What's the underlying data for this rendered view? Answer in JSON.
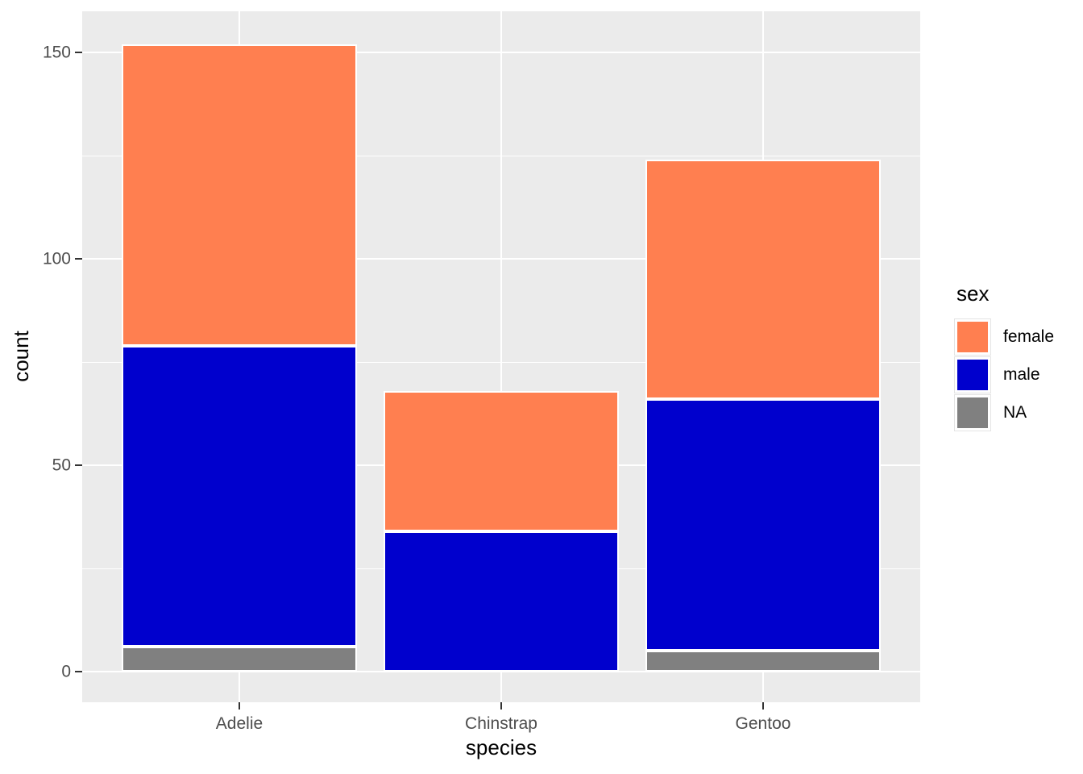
{
  "chart_data": {
    "type": "bar",
    "stacked": true,
    "title": "",
    "xlabel": "species",
    "ylabel": "count",
    "categories": [
      "Adelie",
      "Chinstrap",
      "Gentoo"
    ],
    "series": [
      {
        "name": "female",
        "color": "#FF7F50",
        "values": [
          73,
          34,
          58
        ]
      },
      {
        "name": "male",
        "color": "#0000CD",
        "values": [
          73,
          34,
          61
        ]
      },
      {
        "name": "NA",
        "color": "#808080",
        "values": [
          6,
          0,
          5
        ]
      }
    ],
    "stack_order_bottom_to_top": [
      "NA",
      "male",
      "female"
    ],
    "totals": [
      152,
      68,
      124
    ],
    "ylim": [
      0,
      160
    ],
    "yticks_major": [
      0,
      50,
      100,
      150
    ],
    "ytick_labels": [
      "0",
      "50",
      "100",
      "150"
    ],
    "yticks_minor": [
      25,
      75,
      125
    ],
    "grid": true,
    "legend": {
      "title": "sex",
      "position": "right",
      "items": [
        {
          "label": "female",
          "color": "#FF7F50"
        },
        {
          "label": "male",
          "color": "#0000CD"
        },
        {
          "label": "NA",
          "color": "#808080"
        }
      ]
    },
    "colors": {
      "figure_background": "#FFFFFF",
      "panel_background": "#EBEBEB",
      "grid": "#FFFFFF",
      "bar_outline": "#FFFFFF",
      "tick_text": "#4D4D4D",
      "tick_mark": "#333333",
      "title_text": "#000000"
    }
  }
}
